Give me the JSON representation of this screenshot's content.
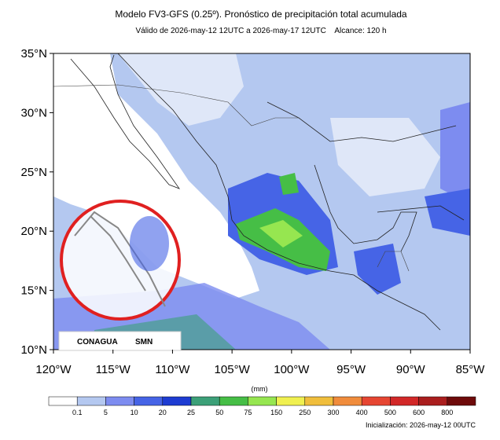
{
  "header": {
    "title": "Modelo FV3-GFS (0.25º). Pronóstico de precipitación total acumulada",
    "subtitle": "Válido de 2026-may-12 12UTC a 2026-may-17 12UTC    Alcance: 120 h"
  },
  "map": {
    "lat_labels": [
      "35°N",
      "30°N",
      "25°N",
      "20°N",
      "15°N",
      "10°N"
    ],
    "lon_labels": [
      "120°W",
      "115°W",
      "110°W",
      "105°W",
      "100°W",
      "95°W",
      "90°W",
      "85°W"
    ]
  },
  "logos": {
    "left": "CONAGUA",
    "right": "SMN"
  },
  "colorbar": {
    "unit": "(mm)",
    "labels": [
      0.1,
      5,
      10,
      20,
      25,
      50,
      75,
      150,
      250,
      300,
      400,
      500,
      600,
      800
    ],
    "colors": [
      "#ffffff",
      "#b4c8f0",
      "#7d8cf0",
      "#4664e6",
      "#1e3cd2",
      "#3ca078",
      "#46be46",
      "#96e650",
      "#f0f050",
      "#f0be3c",
      "#f08c3c",
      "#e64632",
      "#d22828",
      "#aa1e1e",
      "#6e0a0a"
    ]
  },
  "footer": {
    "init": "Inicialización: 2026-may-12 00UTC"
  }
}
